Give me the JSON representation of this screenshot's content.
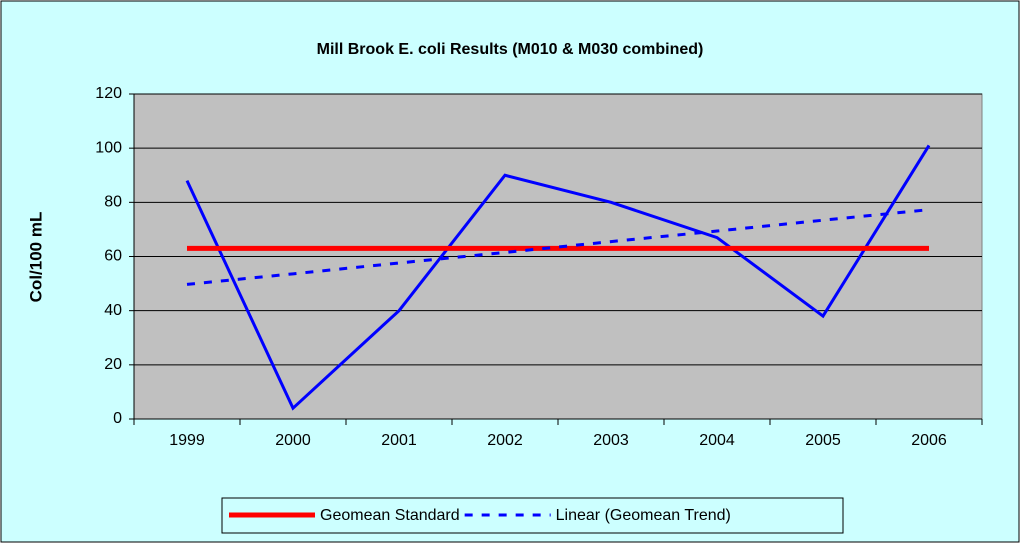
{
  "chart_data": {
    "type": "line",
    "title": "Mill Brook E. coli Results (M010 & M030 combined)",
    "y_label": "Col/100 mL",
    "categories": [
      "1999",
      "2000",
      "2001",
      "2002",
      "2003",
      "2004",
      "2005",
      "2006"
    ],
    "series": [
      {
        "color": "#0000ff",
        "line_style": "solid",
        "values": [
          88,
          4,
          40,
          90,
          80,
          67,
          38,
          101
        ]
      },
      {
        "name": "Geomean Standard",
        "color": "#ff0000",
        "line_style": "thick",
        "values": [
          63,
          63,
          63,
          63,
          63,
          63,
          63,
          63
        ]
      },
      {
        "name": "Linear (Geomean Trend)",
        "color": "#0000ff",
        "line_style": "dashed",
        "values": [
          49.7,
          53.6,
          57.6,
          61.5,
          65.5,
          69.4,
          73.4,
          77.3
        ]
      }
    ],
    "ylim": [
      0,
      120
    ],
    "yticks": [
      0,
      20,
      40,
      60,
      80,
      100,
      120
    ],
    "grid": true,
    "legend": "bottom"
  }
}
